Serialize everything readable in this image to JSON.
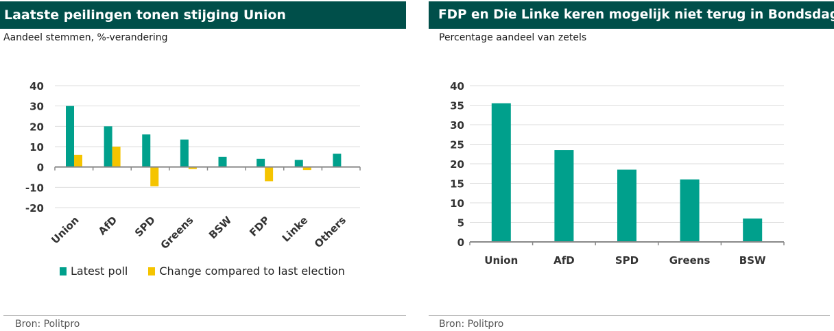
{
  "colors": {
    "teal": "#00a08c",
    "yellow": "#f5c400",
    "titlebar": "#004f4a"
  },
  "left": {
    "title": "Laatste peilingen tonen stijging Union",
    "subtitle": "Aandeel stemmen, %-verandering",
    "source": "Bron: Politpro",
    "legend": {
      "series1": "Latest poll",
      "series2": "Change compared to last election"
    }
  },
  "right": {
    "title": "FDP en Die Linke keren mogelijk niet terug in Bondsdag",
    "subtitle": "Percentage aandeel van zetels",
    "source": "Bron: Politpro"
  },
  "chart_data": [
    {
      "type": "bar",
      "title": "Laatste peilingen tonen stijging Union",
      "subtitle": "Aandeel stemmen, %-verandering",
      "categories": [
        "Union",
        "AfD",
        "SPD",
        "Greens",
        "BSW",
        "FDP",
        "Linke",
        "Others"
      ],
      "series": [
        {
          "name": "Latest poll",
          "values": [
            30.0,
            20.0,
            16.0,
            13.5,
            5.0,
            4.0,
            3.5,
            6.5
          ]
        },
        {
          "name": "Change compared to last election",
          "values": [
            6.0,
            10.0,
            -9.5,
            -1.0,
            0.0,
            -7.0,
            -1.5,
            0.0
          ]
        }
      ],
      "yticks": [
        40,
        30,
        20,
        10,
        0,
        -10,
        -20
      ],
      "ylim": [
        -20,
        40
      ],
      "grid": true,
      "legend_position": "bottom"
    },
    {
      "type": "bar",
      "title": "FDP en Die Linke keren mogelijk niet terug in Bondsdag",
      "subtitle": "Percentage aandeel van zetels",
      "categories": [
        "Union",
        "AfD",
        "SPD",
        "Greens",
        "BSW"
      ],
      "values": [
        35.5,
        23.5,
        18.5,
        16.0,
        6.0
      ],
      "yticks": [
        40,
        35,
        30,
        25,
        20,
        15,
        10,
        5,
        0
      ],
      "ylim": [
        0,
        40
      ],
      "grid": true
    }
  ]
}
